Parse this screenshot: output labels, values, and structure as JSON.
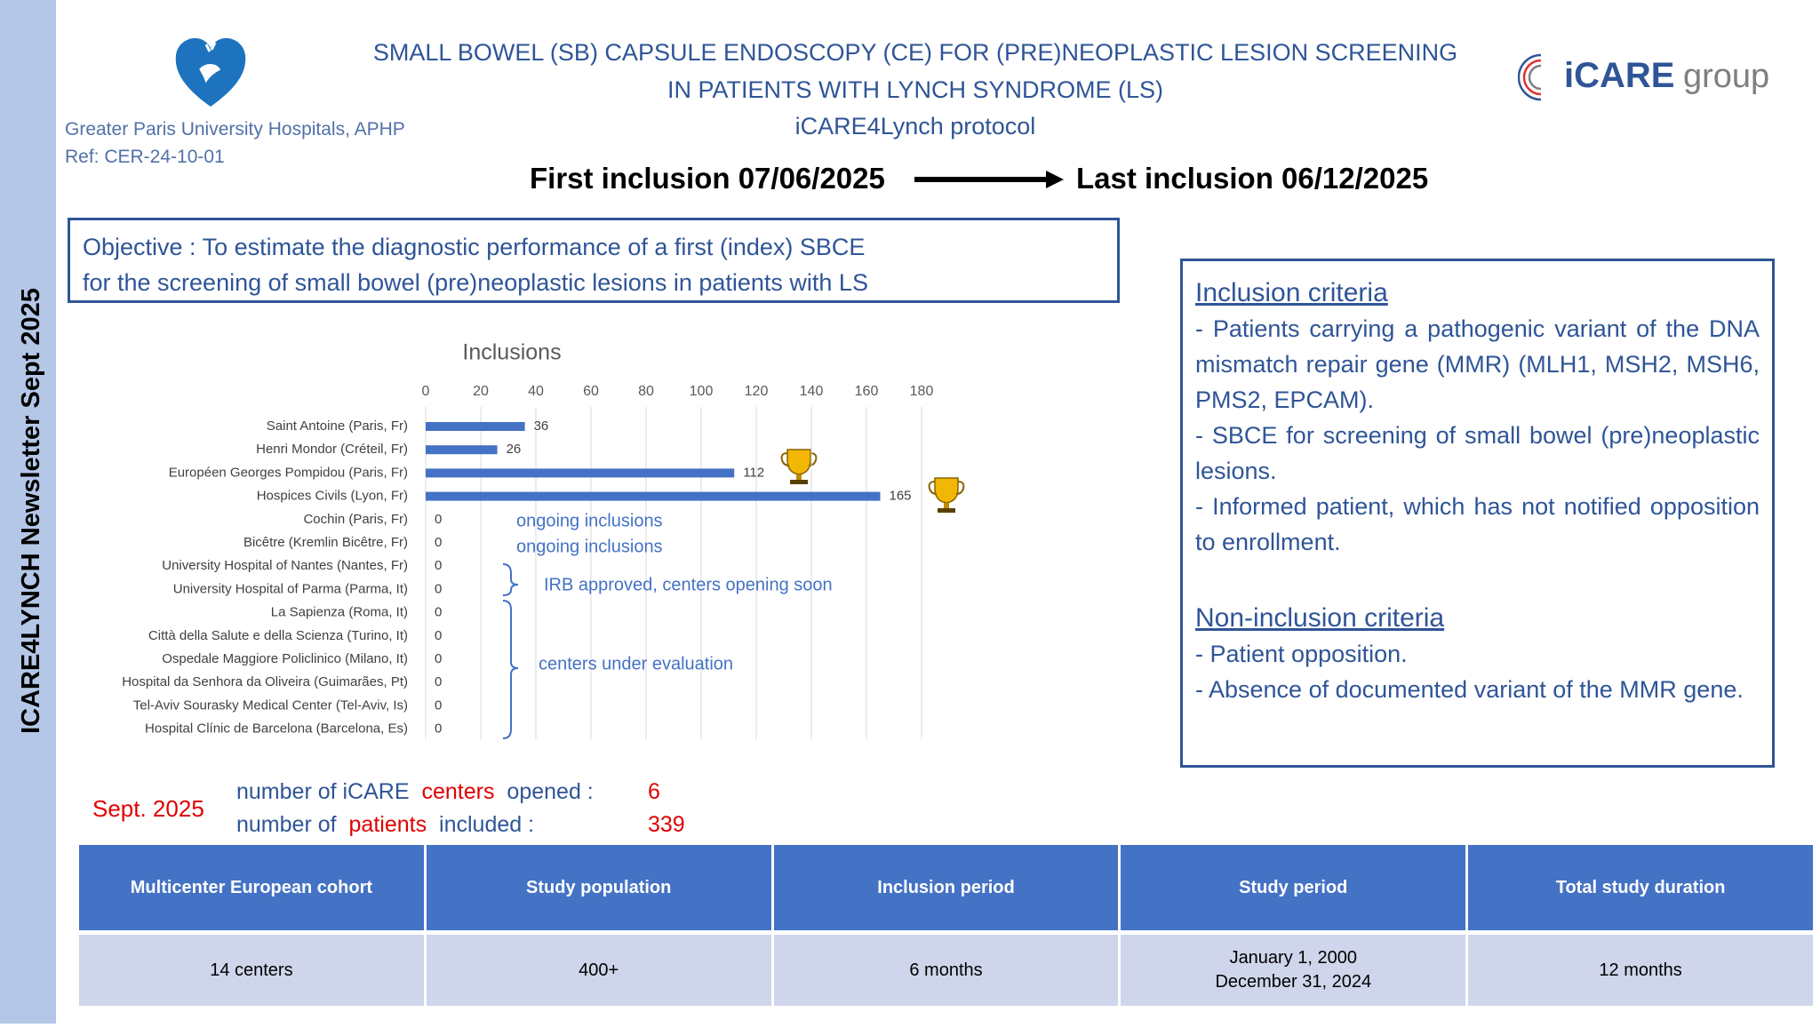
{
  "sidebar": "ICARE4LYNCH Newsletter Sept 2025",
  "header": {
    "institution": "Greater Paris University Hospitals, APHP",
    "ref": "Ref: CER-24-10-01",
    "title_lines": [
      "SMALL BOWEL (SB) CAPSULE ENDOSCOPY (CE) FOR (PRE)NEOPLASTIC LESION SCREENING",
      "IN PATIENTS WITH LYNCH SYNDROME (LS)",
      "iCARE4Lynch protocol"
    ],
    "logo": [
      "iCARE",
      "group"
    ],
    "first_inclusion": "First inclusion 07/06/2025",
    "last_inclusion": "Last inclusion 06/12/2025"
  },
  "objective": [
    "Objective : To estimate the diagnostic performance of a first (index) SBCE",
    "for the screening of small bowel (pre)neoplastic lesions in patients with LS"
  ],
  "chart_data": {
    "type": "bar",
    "orientation": "horizontal",
    "title": "Inclusions",
    "categories": [
      "Saint Antoine (Paris, Fr)",
      "Henri Mondor (Créteil, Fr)",
      "Européen Georges Pompidou (Paris, Fr)",
      "Hospices Civils (Lyon, Fr)",
      "Cochin (Paris, Fr)",
      "Bicêtre (Kremlin Bicêtre, Fr)",
      "University Hospital of Nantes (Nantes, Fr)",
      "University Hospital of Parma (Parma, It)",
      "La Sapienza (Roma, It)",
      "Città della Salute e della Scienza (Turino, It)",
      "Ospedale Maggiore Policlinico (Milano, It)",
      "Hospital da Senhora da Oliveira (Guimarães, Pt)",
      "Tel-Aviv Sourasky Medical Center (Tel-Aviv, Is)",
      "Hospital Clínic de Barcelona (Barcelona, Es)"
    ],
    "values": [
      36,
      26,
      112,
      165,
      0,
      0,
      0,
      0,
      0,
      0,
      0,
      0,
      0,
      0
    ],
    "color": "#4472c4",
    "xlim": [
      0,
      180
    ],
    "xticks": [
      0,
      20,
      40,
      60,
      80,
      100,
      120,
      140,
      160,
      180
    ],
    "grid": true,
    "annotations": [
      "ongoing inclusions",
      "ongoing inclusions",
      "IRB approved, centers opening soon",
      "centers under evaluation"
    ]
  },
  "criteria": {
    "inclusion_title": "Inclusion criteria",
    "inclusion": [
      "- Patients carrying a pathogenic variant of the DNA mismatch repair gene (MMR) (MLH1, MSH2, MSH6, PMS2, EPCAM).",
      "- SBCE for screening of small bowel (pre)neoplastic lesions.",
      "- Informed patient, which has not notified opposition to enrollment."
    ],
    "non_inclusion_title": "Non-inclusion criteria",
    "non_inclusion": [
      "- Patient opposition.",
      "- Absence of documented variant of the MMR gene."
    ]
  },
  "status": {
    "date": "Sept. 2025",
    "rows": [
      {
        "parts": [
          "number of iCARE",
          "centers",
          "opened :"
        ],
        "value": 6
      },
      {
        "parts": [
          "number of",
          "patients",
          "included :"
        ],
        "value": 339
      }
    ]
  },
  "table": {
    "headers": [
      "Multicenter European cohort",
      "Study population",
      "Inclusion period",
      "Study period",
      "Total study duration"
    ],
    "rows": [
      [
        [
          "14 centers"
        ],
        [
          "400+"
        ],
        [
          "6 months"
        ],
        [
          "January 1, 2000",
          "December 31, 2024"
        ],
        [
          "12 months"
        ]
      ]
    ]
  }
}
